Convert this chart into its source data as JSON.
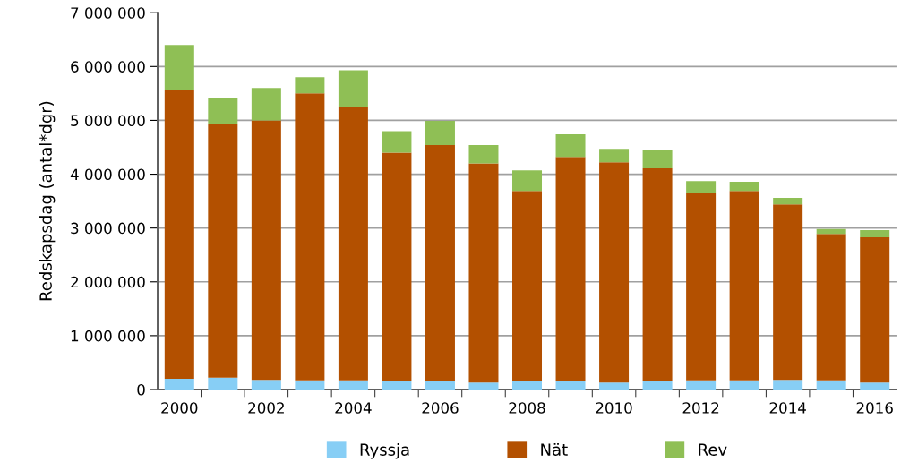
{
  "chart_data": {
    "type": "bar",
    "stacked": true,
    "ylabel": "Redskapsdag (antal*dgr)",
    "categories": [
      "2000",
      null,
      "2002",
      null,
      "2004",
      null,
      "2006",
      null,
      "2008",
      null,
      "2010",
      null,
      "2012",
      null,
      "2014",
      null,
      "2016"
    ],
    "series": [
      {
        "name": "Ryssja",
        "color": "#87cef5",
        "values": [
          200000.0,
          220000.0,
          180000.0,
          170000.0,
          170000.0,
          150000.0,
          150000.0,
          130000.0,
          150000.0,
          150000.0,
          130000.0,
          150000.0,
          170000.0,
          170000.0,
          180000.0,
          170000.0,
          130000.0
        ]
      },
      {
        "name": "Nät",
        "color": "#b35000",
        "values": [
          5370000.0,
          4720000.0,
          4820000.0,
          5330000.0,
          5070000.0,
          4250000.0,
          4390000.0,
          4070000.0,
          3540000.0,
          4170000.0,
          4090000.0,
          3960000.0,
          3490000.0,
          3520000.0,
          3260000.0,
          2720000.0,
          2700000.0
        ]
      },
      {
        "name": "Rev",
        "color": "#8fbf55",
        "values": [
          830000.0,
          480000.0,
          600000.0,
          300000.0,
          690000.0,
          400000.0,
          450000.0,
          340000.0,
          380000.0,
          420000.0,
          250000.0,
          340000.0,
          210000.0,
          170000.0,
          120000.0,
          90000.0,
          130000.0
        ]
      }
    ],
    "ylim": [
      0,
      7000000
    ],
    "yticks": [
      {
        "value": 0,
        "label": "0"
      },
      {
        "value": 1000000,
        "label": "1 000 000"
      },
      {
        "value": 2000000,
        "label": "2 000 000"
      },
      {
        "value": 3000000,
        "label": "3 000 000"
      },
      {
        "value": 4000000,
        "label": "4 000 000"
      },
      {
        "value": 5000000,
        "label": "5 000 000"
      },
      {
        "value": 6000000,
        "label": "6 000 000"
      },
      {
        "value": 7000000,
        "label": "7 000 000"
      }
    ],
    "grid": "y",
    "legend": "bottom"
  }
}
